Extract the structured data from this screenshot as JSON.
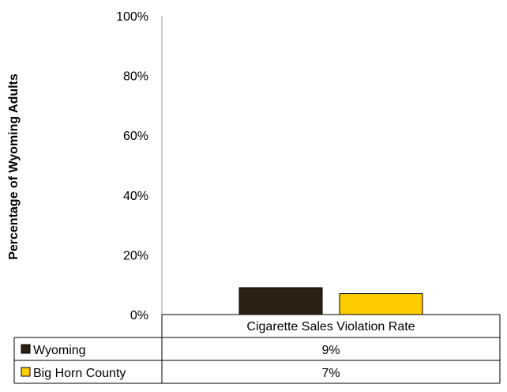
{
  "chart_data": {
    "type": "bar",
    "categories": [
      "Cigarette Sales Violation Rate"
    ],
    "series": [
      {
        "name": "Wyoming",
        "values": [
          9
        ],
        "color": "#2b2213",
        "label": "9%"
      },
      {
        "name": "Big Horn County",
        "values": [
          7
        ],
        "color": "#ffcc00",
        "label": "7%"
      }
    ],
    "ylabel": "Percentage of Wyoming Adults",
    "ylim": [
      0,
      100
    ],
    "yticks": [
      "0%",
      "20%",
      "40%",
      "60%",
      "80%",
      "100%"
    ],
    "grid": false,
    "legend": "data-table"
  }
}
